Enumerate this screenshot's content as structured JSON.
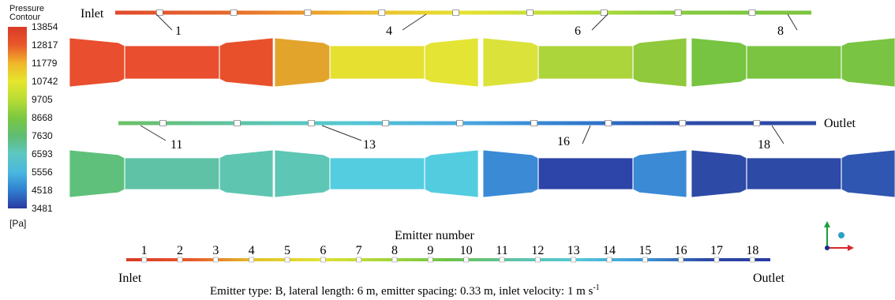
{
  "legend": {
    "title_line1": "Pressure",
    "title_line2": "Contour",
    "unit": "[Pa]",
    "levels": [
      "13854",
      "12817",
      "11779",
      "10742",
      "9705",
      "8668",
      "7630",
      "6593",
      "5556",
      "4518",
      "3481"
    ],
    "colors": [
      "#d93a28",
      "#e8582a",
      "#f0b62a",
      "#e6e62e",
      "#b8dc34",
      "#7cc841",
      "#5fbd72",
      "#5ec6c2",
      "#4ab8e0",
      "#2f7fd0",
      "#2a3aa0"
    ]
  },
  "top_row": {
    "inlet_label": "Inlet",
    "callouts": [
      "1",
      "4",
      "6",
      "8"
    ],
    "segments": [
      {
        "main": "#e94e2e",
        "left": "#e94e2e",
        "right": "#e8502c"
      },
      {
        "main": "#e6e030",
        "left": "#e3a42c",
        "right": "#e4e434"
      },
      {
        "main": "#acd43b",
        "left": "#dbe23a",
        "right": "#90c93c"
      },
      {
        "main": "#7bc441",
        "left": "#76c441",
        "right": "#79c442"
      }
    ]
  },
  "bottom_row": {
    "outlet_label": "Outlet",
    "callouts": [
      "11",
      "13",
      "16",
      "18"
    ],
    "segments": [
      {
        "main": "#5fc2a6",
        "left": "#5ec07a",
        "right": "#5ec6b0"
      },
      {
        "main": "#54cde0",
        "left": "#5ec6b4",
        "right": "#54cce0"
      },
      {
        "main": "#2d45a8",
        "left": "#3a8ad6",
        "right": "#3a8ad6"
      },
      {
        "main": "#2d4aa6",
        "left": "#2d4aa6",
        "right": "#2f56b0"
      }
    ]
  },
  "emitter_strip": {
    "title": "Emitter number",
    "numbers": [
      "1",
      "2",
      "3",
      "4",
      "5",
      "6",
      "7",
      "8",
      "9",
      "10",
      "11",
      "12",
      "13",
      "14",
      "15",
      "16",
      "17",
      "18"
    ],
    "inlet_label": "Inlet",
    "outlet_label": "Outlet"
  },
  "caption": {
    "text": "Emitter type: B, lateral length: 6 m, emitter spacing: 0.33 m, inlet velocity: 1 m s",
    "superscript": "-1"
  },
  "axes_icon": {
    "name": "axes-triad-icon",
    "x_color": "#d62828",
    "y_color": "#1a9e3a",
    "z_color": "#2aa0c8"
  }
}
